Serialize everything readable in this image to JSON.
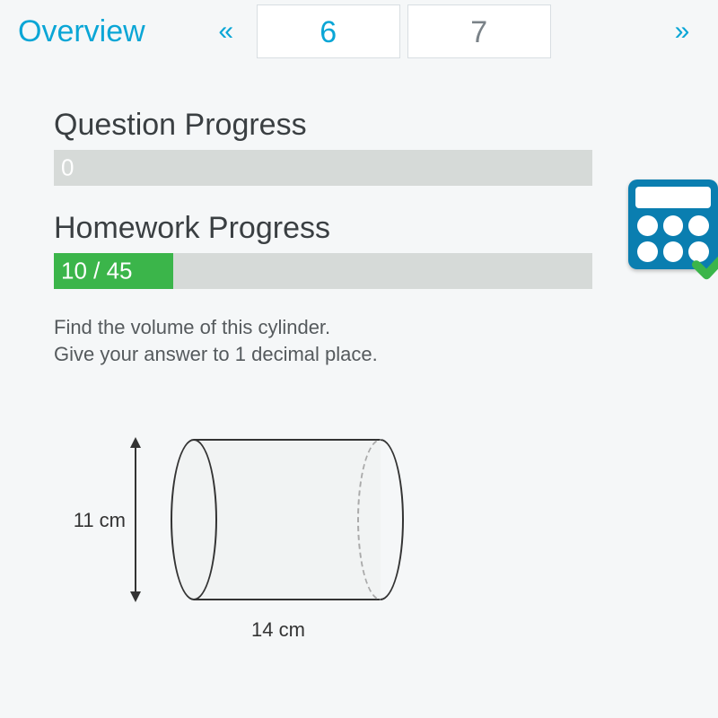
{
  "nav": {
    "overview": "Overview",
    "prev": "«",
    "pages": [
      "6",
      "7"
    ],
    "next": "»"
  },
  "question_progress": {
    "title": "Question Progress",
    "label": "0",
    "percent": 0,
    "bar_bg": "#d6dad8",
    "fill_color": "#3bb54a"
  },
  "homework_progress": {
    "title": "Homework Progress",
    "label": "10 / 45",
    "percent": 22.2,
    "bar_bg": "#d6dad8",
    "fill_color": "#3bb54a"
  },
  "question": {
    "line1": "Find the volume of this cylinder.",
    "line2": "Give your answer to 1 decimal place."
  },
  "figure": {
    "type": "cylinder",
    "diameter_label": "11 cm",
    "length_label": "14 cm",
    "diameter_cm": 11,
    "length_cm": 14,
    "stroke": "#333333",
    "fill": "#f1f3f3"
  },
  "calculator": {
    "icon_bg": "#0a7eb0",
    "screen_bg": "#ffffff",
    "check_color": "#3bb54a"
  },
  "colors": {
    "accent": "#0aa6d6",
    "text": "#3a3f42",
    "muted": "#7a8288",
    "page_bg": "#f5f7f8"
  }
}
